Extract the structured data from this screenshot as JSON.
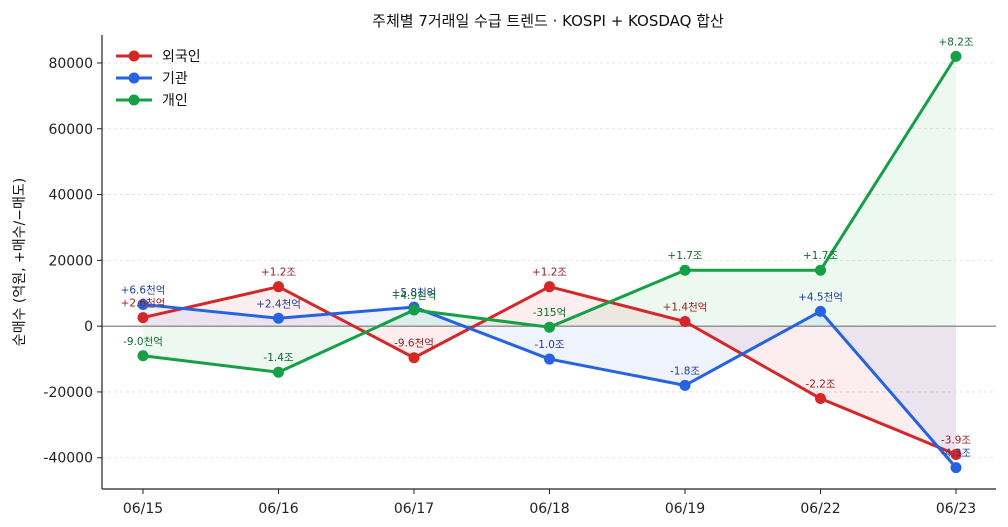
{
  "chart_data": {
    "type": "line",
    "title": "주체별 7거래일 수급 트렌드 · KOSPI + KOSDAQ 합산",
    "xlabel": "",
    "ylabel": "순매수 (억원, +매수/−매도)",
    "categories": [
      "06/15",
      "06/16",
      "06/17",
      "06/18",
      "06/19",
      "06/22",
      "06/23"
    ],
    "ylim": [
      -49500,
      88500
    ],
    "yticks": [
      -40000,
      -20000,
      0,
      20000,
      40000,
      60000,
      80000
    ],
    "grid": true,
    "legend_position": "top-left",
    "series": [
      {
        "name": "외국인",
        "color": "#d62728",
        "label_color": "#9a1b1b",
        "values": [
          2600,
          12000,
          -9600,
          12000,
          1400,
          -22000,
          -39000
        ],
        "labels": [
          "+2.6천억",
          "+1.2조",
          "-9.6천억",
          "+1.2조",
          "+1.4천억",
          "-2.2조",
          "-3.9조"
        ]
      },
      {
        "name": "기관",
        "color": "#2563e0",
        "label_color": "#1e3f9a",
        "values": [
          6600,
          2400,
          5800,
          -10000,
          -18000,
          4500,
          -43000
        ],
        "labels": [
          "+6.6천억",
          "+2.4천억",
          "+5.8천억",
          "-1.0조",
          "-1.8조",
          "+4.5천억",
          "-4.3조"
        ]
      },
      {
        "name": "개인",
        "color": "#16a045",
        "label_color": "#0f6b30",
        "values": [
          -9000,
          -14000,
          4900,
          -315,
          17000,
          17000,
          82000
        ],
        "labels": [
          "-9.0천억",
          "-1.4조",
          "+4.9천억",
          "-315억",
          "+1.7조",
          "+1.7조",
          "+8.2조"
        ]
      }
    ]
  }
}
